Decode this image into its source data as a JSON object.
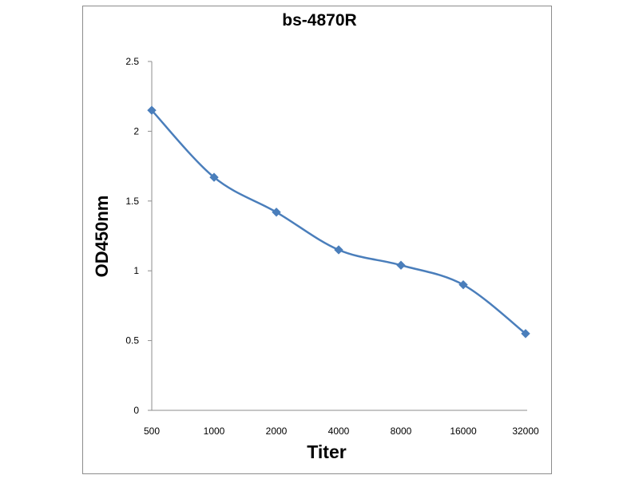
{
  "chart_data": {
    "type": "line",
    "title": "bs-4870R",
    "xlabel": "Titer",
    "ylabel": "OD450nm",
    "categories": [
      "500",
      "1000",
      "2000",
      "4000",
      "8000",
      "16000",
      "32000"
    ],
    "series": [
      {
        "values": [
          2.15,
          1.67,
          1.42,
          1.15,
          1.04,
          0.9,
          0.55
        ]
      }
    ],
    "ylim": [
      0,
      2.5
    ],
    "yticks": [
      "0",
      "0.5",
      "1",
      "1.5",
      "2",
      "2.5"
    ],
    "grid": false,
    "legend": "none",
    "colors": {
      "series": "#4a7ebb",
      "axis": "#8c8c8c"
    }
  }
}
